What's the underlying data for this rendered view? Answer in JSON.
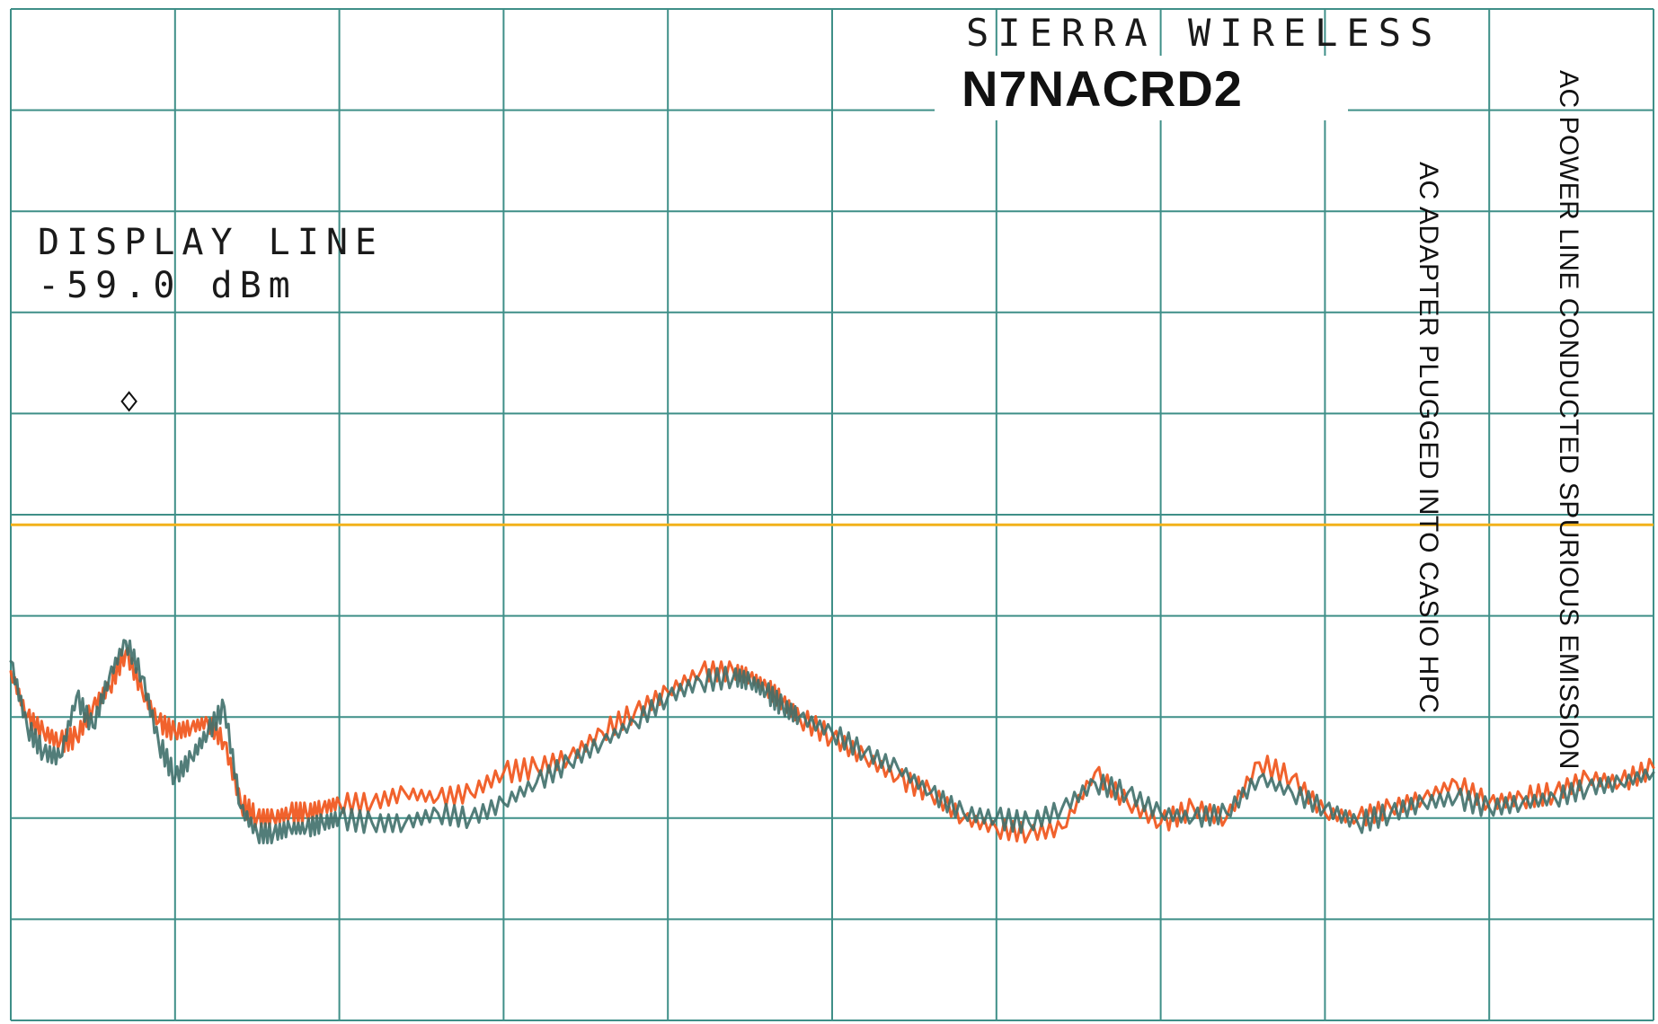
{
  "header": {
    "brand": "SIERRA WIRELESS",
    "model": "N7NACRD2"
  },
  "display_line": {
    "label": "DISPLAY LINE",
    "value_text": "-59.0 dBm"
  },
  "annotations": {
    "vertical_1": "AC POWER LINE CONDUCTED SPURIOUS EMISSION",
    "vertical_2": "AC ADAPTER PLUGGED INTO CASIO HPC"
  },
  "colors": {
    "grid": "#3f8f88",
    "display_line": "#f2b21b",
    "trace_orange": "#f05a22",
    "trace_green": "#3f6f6a",
    "marker": "#111111"
  },
  "chart_data": {
    "type": "line",
    "title": "AC POWER LINE CONDUCTED SPURIOUS EMISSION",
    "xlabel": "",
    "ylabel": "",
    "grid": true,
    "x_divisions": 10,
    "y_divisions": 10,
    "xlim": [
      0,
      10
    ],
    "ylim": [
      0,
      10
    ],
    "display_line": {
      "label": "DISPLAY LINE",
      "value": -59.0,
      "unit": "dBm",
      "y_div": 5.1
    },
    "marker": {
      "x": 0.72,
      "y": 3.88
    },
    "series": [
      {
        "color": "#f05a22",
        "x": [
          0.0,
          0.1,
          0.2,
          0.3,
          0.4,
          0.5,
          0.6,
          0.7,
          0.8,
          0.9,
          1.0,
          1.1,
          1.2,
          1.3,
          1.4,
          1.5,
          1.6,
          1.7,
          1.8,
          1.9,
          2.0,
          2.2,
          2.4,
          2.6,
          2.8,
          3.0,
          3.2,
          3.4,
          3.6,
          3.8,
          4.0,
          4.2,
          4.4,
          4.5,
          4.6,
          4.7,
          4.8,
          5.0,
          5.2,
          5.4,
          5.6,
          5.8,
          6.0,
          6.2,
          6.4,
          6.6,
          6.8,
          7.0,
          7.2,
          7.4,
          7.6,
          7.8,
          8.0,
          8.2,
          8.4,
          8.6,
          8.8,
          9.0,
          9.2,
          9.4,
          9.6,
          9.8,
          10.0
        ],
        "y": [
          6.55,
          7.0,
          7.15,
          7.25,
          7.2,
          6.9,
          6.7,
          6.35,
          6.75,
          7.05,
          7.15,
          7.1,
          7.05,
          7.25,
          7.85,
          8.0,
          8.0,
          7.95,
          7.95,
          7.9,
          7.85,
          7.85,
          7.75,
          7.8,
          7.75,
          7.55,
          7.5,
          7.4,
          7.15,
          6.95,
          6.75,
          6.55,
          6.55,
          6.6,
          6.7,
          6.85,
          7.0,
          7.2,
          7.4,
          7.6,
          7.75,
          8.0,
          8.1,
          8.15,
          8.1,
          7.55,
          7.85,
          8.05,
          7.9,
          8.0,
          7.45,
          7.6,
          7.95,
          8.0,
          7.9,
          7.8,
          7.65,
          7.85,
          7.8,
          7.75,
          7.6,
          7.65,
          7.5
        ]
      },
      {
        "color": "#3f6f6a",
        "x": [
          0.0,
          0.1,
          0.2,
          0.3,
          0.4,
          0.5,
          0.6,
          0.7,
          0.8,
          0.9,
          1.0,
          1.1,
          1.2,
          1.3,
          1.4,
          1.5,
          1.6,
          1.7,
          1.8,
          1.9,
          2.0,
          2.2,
          2.4,
          2.6,
          2.8,
          3.0,
          3.2,
          3.4,
          3.6,
          3.8,
          4.0,
          4.2,
          4.4,
          4.5,
          4.6,
          4.7,
          4.8,
          5.0,
          5.2,
          5.4,
          5.6,
          5.8,
          6.0,
          6.2,
          6.4,
          6.6,
          6.8,
          7.0,
          7.2,
          7.4,
          7.6,
          7.8,
          8.0,
          8.2,
          8.4,
          8.6,
          8.8,
          9.0,
          9.2,
          9.4,
          9.6,
          9.8,
          10.0
        ],
        "y": [
          6.45,
          7.1,
          7.35,
          7.4,
          6.8,
          7.1,
          6.6,
          6.25,
          6.6,
          7.25,
          7.6,
          7.4,
          7.15,
          6.9,
          7.9,
          8.15,
          8.15,
          8.1,
          8.1,
          8.05,
          8.0,
          8.05,
          8.05,
          7.95,
          8.0,
          7.85,
          7.65,
          7.45,
          7.25,
          7.05,
          6.8,
          6.65,
          6.6,
          6.65,
          6.75,
          6.9,
          7.0,
          7.15,
          7.35,
          7.5,
          7.75,
          7.95,
          8.0,
          8.05,
          7.9,
          7.65,
          7.75,
          7.95,
          8.0,
          7.95,
          7.6,
          7.75,
          7.9,
          8.05,
          7.95,
          7.85,
          7.8,
          7.9,
          7.85,
          7.8,
          7.7,
          7.65,
          7.55
        ]
      }
    ]
  }
}
